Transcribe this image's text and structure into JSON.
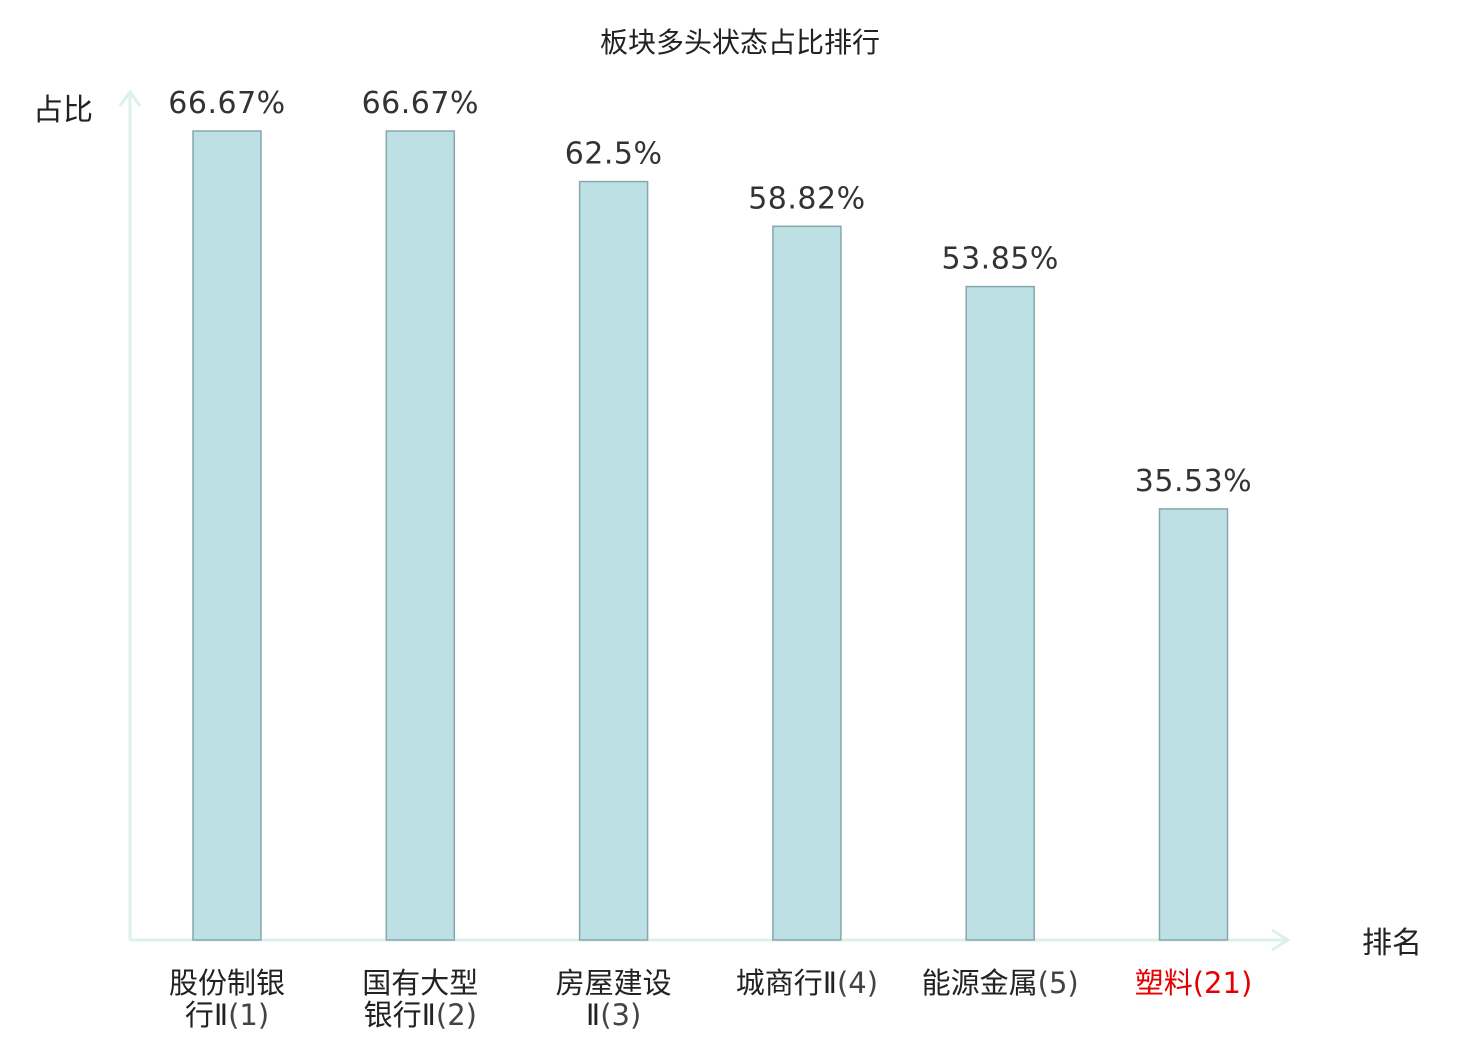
{
  "chart_data": {
    "type": "bar",
    "title": "板块多头状态占比排行",
    "ylabel": "占比",
    "xlabel": "排名",
    "ylim": [
      0,
      70
    ],
    "unit": "%",
    "grid": false,
    "colors": {
      "bar_fill": "#bce0e3",
      "bar_stroke": "#86a7ab",
      "axis": "#ddf0ec",
      "highlight_label": "#e60000"
    },
    "categories": [
      {
        "lines": [
          "股份制银",
          "行Ⅱ(1)"
        ],
        "name": "股份制银行Ⅱ",
        "rank": "(1)",
        "highlight": false
      },
      {
        "lines": [
          "国有大型",
          "银行Ⅱ(2)"
        ],
        "name": "国有大型银行Ⅱ",
        "rank": "(2)",
        "highlight": false
      },
      {
        "lines": [
          "房屋建设",
          "Ⅱ(3)"
        ],
        "name": "房屋建设Ⅱ",
        "rank": "(3)",
        "highlight": false
      },
      {
        "lines": [
          "城商行Ⅱ(4)"
        ],
        "name": "城商行Ⅱ",
        "rank": "(4)",
        "highlight": false
      },
      {
        "lines": [
          "能源金属(5)"
        ],
        "name": "能源金属",
        "rank": "(5)",
        "highlight": false
      },
      {
        "lines": [
          "塑料(21)"
        ],
        "name": "塑料",
        "rank": "(21)",
        "highlight": true
      }
    ],
    "values": [
      66.67,
      66.67,
      62.5,
      58.82,
      53.85,
      35.53
    ],
    "value_labels": [
      "66.67%",
      "66.67%",
      "62.5%",
      "58.82%",
      "53.85%",
      "35.53%"
    ]
  }
}
